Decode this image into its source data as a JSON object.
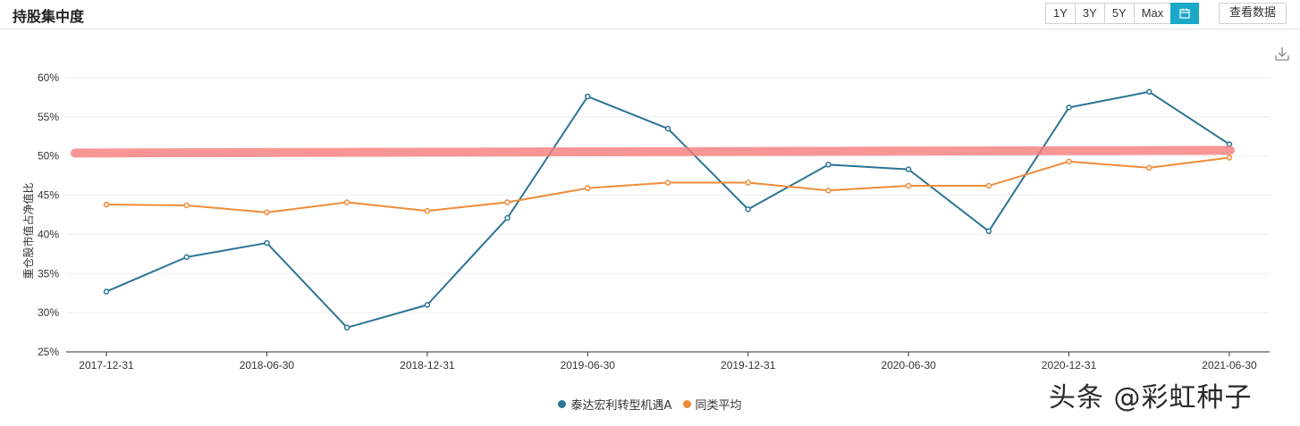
{
  "header": {
    "title": "持股集中度",
    "ranges": [
      "1Y",
      "3Y",
      "5Y",
      "Max"
    ],
    "calendar_icon": "calendar-icon",
    "view_data_label": "查看数据",
    "download_icon": "download-icon",
    "accent_color": "#1aa9c8"
  },
  "watermark": "头条 @彩虹种子",
  "chart_data": {
    "type": "line",
    "ylabel": "重仓股市值占净值比",
    "xlabel": "",
    "ylim": [
      25,
      60
    ],
    "y_ticks": [
      "25%",
      "30%",
      "35%",
      "40%",
      "45%",
      "50%",
      "55%",
      "60%"
    ],
    "x": [
      "2017-12-31",
      "2018-03-31",
      "2018-06-30",
      "2018-09-30",
      "2018-12-31",
      "2019-03-31",
      "2019-06-30",
      "2019-09-30",
      "2019-12-31",
      "2020-03-31",
      "2020-06-30",
      "2020-09-30",
      "2020-12-31",
      "2021-03-31",
      "2021-06-30"
    ],
    "x_tick_labels": [
      "2017-12-31",
      "2018-06-30",
      "2018-12-31",
      "2019-06-30",
      "2019-12-31",
      "2020-06-30",
      "2020-12-31",
      "2021-06-30"
    ],
    "grid": true,
    "legend_position": "bottom",
    "series": [
      {
        "name": "泰达宏利转型机遇A",
        "color": "#2b7493",
        "values": [
          32.7,
          37.1,
          38.9,
          28.1,
          31.0,
          42.1,
          57.6,
          53.5,
          43.2,
          48.9,
          48.3,
          40.4,
          56.2,
          58.2,
          51.5
        ]
      },
      {
        "name": "同类平均",
        "color": "#ef8c3a",
        "values": [
          43.8,
          43.7,
          42.8,
          44.1,
          43.0,
          44.1,
          45.9,
          46.6,
          46.6,
          45.6,
          46.2,
          46.2,
          49.3,
          48.5,
          49.8
        ]
      }
    ],
    "annotation_line": {
      "y": 50.5,
      "color": "#f77c7c"
    }
  }
}
